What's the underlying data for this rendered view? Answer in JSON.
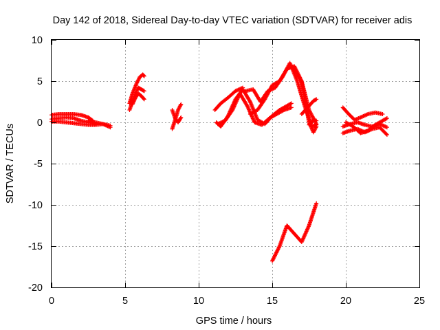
{
  "chart_data": {
    "type": "scatter",
    "title": "Day 142 of 2018, Sidereal Day-to-day VTEC variation (SDTVAR) for receiver adis",
    "xlabel": "GPS time / hours",
    "ylabel": "SDTVAR / TECUs",
    "xlim": [
      0,
      25
    ],
    "ylim": [
      -20,
      10
    ],
    "xticks": [
      0,
      5,
      10,
      15,
      20,
      25
    ],
    "yticks": [
      10,
      5,
      0,
      -5,
      -10,
      -15,
      -20
    ],
    "grid": true,
    "marker": "+",
    "series_color": "#ff0000",
    "series": [
      {
        "name": "sdtvar",
        "segments": [
          {
            "x": [
              0.0,
              0.5,
              1.0,
              1.5,
              2.0,
              2.5,
              2.8
            ],
            "y": [
              0.9,
              1.0,
              1.0,
              1.0,
              0.9,
              0.6,
              0.2
            ]
          },
          {
            "x": [
              0.0,
              0.5,
              1.0,
              1.5,
              2.0,
              2.5,
              3.0
            ],
            "y": [
              0.4,
              0.5,
              0.6,
              0.5,
              0.2,
              0.0,
              -0.2
            ]
          },
          {
            "x": [
              0.0,
              0.5,
              1.0,
              1.5,
              2.0,
              2.5,
              3.0,
              3.5,
              4.0
            ],
            "y": [
              0.1,
              0.1,
              0.0,
              -0.1,
              -0.2,
              -0.3,
              -0.3,
              -0.2,
              -0.4
            ]
          },
          {
            "x": [
              2.5,
              3.0,
              3.5,
              4.0
            ],
            "y": [
              0.2,
              0.0,
              -0.2,
              -0.6
            ]
          },
          {
            "x": [
              5.3,
              5.5,
              5.8,
              6.0,
              6.2,
              6.3
            ],
            "y": [
              2.3,
              3.5,
              4.8,
              5.5,
              5.8,
              5.6
            ]
          },
          {
            "x": [
              5.3,
              5.5,
              5.7,
              5.9,
              6.1,
              6.3
            ],
            "y": [
              1.5,
              2.5,
              3.5,
              4.2,
              4.0,
              3.8
            ]
          },
          {
            "x": [
              5.5,
              5.7,
              5.9,
              6.1,
              6.3
            ],
            "y": [
              2.2,
              3.0,
              3.5,
              3.2,
              2.8
            ]
          },
          {
            "x": [
              8.2,
              8.4,
              8.6,
              8.8
            ],
            "y": [
              -0.8,
              0.3,
              1.5,
              2.2
            ]
          },
          {
            "x": [
              8.2,
              8.4,
              8.6,
              8.8
            ],
            "y": [
              1.5,
              0.5,
              0.0,
              0.6
            ]
          },
          {
            "x": [
              11.1,
              11.5,
              12.0,
              12.5,
              13.0
            ],
            "y": [
              1.5,
              2.3,
              3.0,
              3.8,
              4.2
            ]
          },
          {
            "x": [
              11.2,
              11.5,
              12.0,
              12.5,
              13.0,
              13.5,
              14.0,
              14.5,
              15.0,
              15.5,
              16.0,
              16.3
            ],
            "y": [
              0.0,
              -0.5,
              0.8,
              2.8,
              4.0,
              2.5,
              0.3,
              -0.2,
              0.8,
              1.5,
              2.0,
              2.3
            ]
          },
          {
            "x": [
              11.3,
              11.8,
              12.3,
              12.8,
              13.3,
              13.8,
              14.3,
              14.8,
              15.3,
              15.8,
              16.3
            ],
            "y": [
              -0.2,
              0.2,
              1.5,
              3.5,
              2.0,
              0.0,
              -0.3,
              0.5,
              1.0,
              1.5,
              1.8
            ]
          },
          {
            "x": [
              13.2,
              13.7,
              14.2,
              14.7,
              15.2,
              15.7,
              16.2,
              16.7,
              17.2,
              17.7,
              18.0
            ],
            "y": [
              3.8,
              4.0,
              2.5,
              3.8,
              4.2,
              5.5,
              7.2,
              5.0,
              2.0,
              -0.5,
              -0.3
            ]
          },
          {
            "x": [
              13.5,
              14.0,
              14.5,
              15.0,
              15.5,
              16.0,
              16.5,
              17.0,
              17.5,
              18.0
            ],
            "y": [
              1.0,
              1.5,
              2.8,
              4.5,
              5.0,
              6.5,
              6.8,
              5.0,
              1.5,
              -0.2
            ]
          },
          {
            "x": [
              16.5,
              17.0,
              17.5,
              17.8,
              18.0
            ],
            "y": [
              6.5,
              4.8,
              0.0,
              -1.2,
              -0.5
            ]
          },
          {
            "x": [
              17.0,
              17.5,
              17.8,
              18.0
            ],
            "y": [
              1.0,
              2.0,
              2.6,
              2.8
            ]
          },
          {
            "x": [
              17.5,
              17.8,
              18.0
            ],
            "y": [
              -0.3,
              0.3,
              0.2
            ]
          },
          {
            "x": [
              15.0,
              15.5,
              16.0,
              16.5,
              17.0,
              17.5,
              18.0
            ],
            "y": [
              -16.8,
              -15.0,
              -12.5,
              -13.5,
              -14.5,
              -12.5,
              -9.8
            ]
          },
          {
            "x": [
              19.8,
              20.2,
              20.6,
              21.0,
              21.5,
              22.0,
              22.5
            ],
            "y": [
              1.8,
              1.0,
              0.3,
              0.6,
              1.0,
              1.2,
              1.0
            ]
          },
          {
            "x": [
              19.8,
              20.3,
              20.8,
              21.3,
              21.8,
              22.3,
              22.8
            ],
            "y": [
              -0.5,
              -0.2,
              0.0,
              -0.3,
              -0.5,
              -0.2,
              -0.6
            ]
          },
          {
            "x": [
              19.8,
              20.3,
              20.8,
              21.3,
              21.8,
              22.3,
              22.8
            ],
            "y": [
              -1.3,
              -1.0,
              -0.8,
              -1.2,
              -0.8,
              -0.6,
              -1.5
            ]
          },
          {
            "x": [
              20.0,
              20.5,
              21.0,
              21.5,
              22.0,
              22.5,
              22.8
            ],
            "y": [
              0.0,
              -0.5,
              -1.3,
              -1.0,
              -0.3,
              0.2,
              0.5
            ]
          }
        ]
      }
    ]
  }
}
